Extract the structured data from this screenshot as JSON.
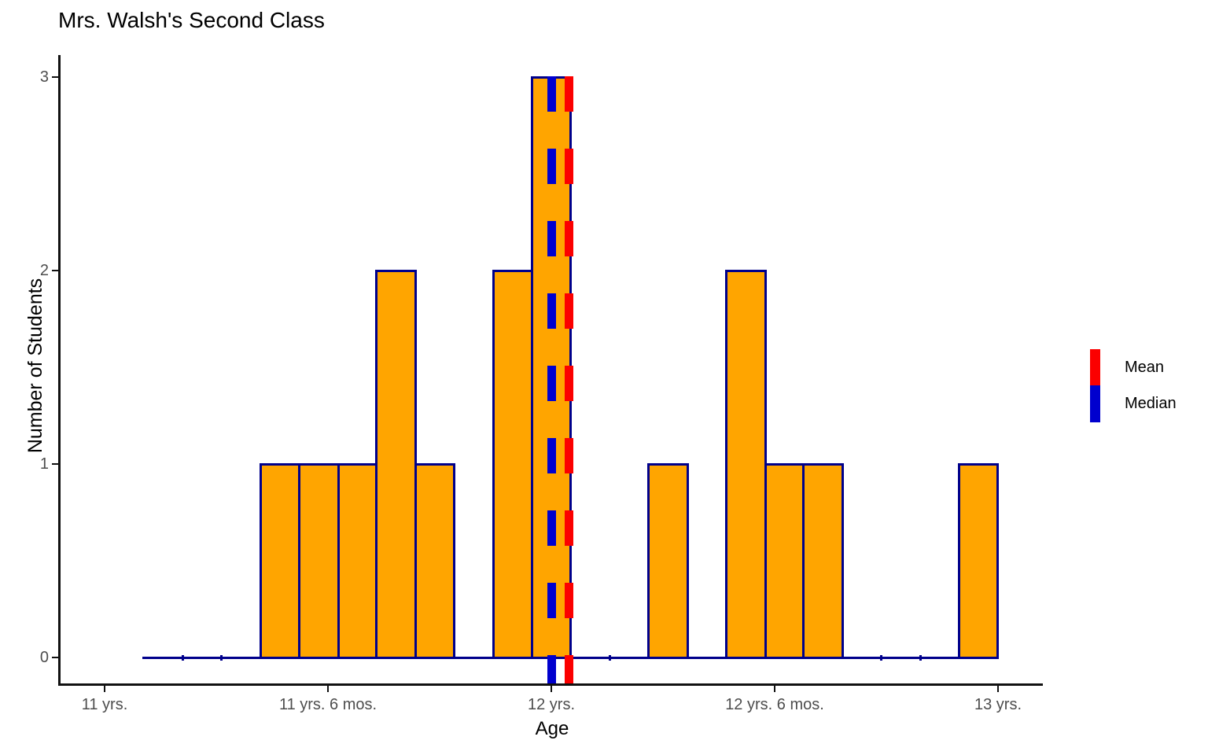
{
  "chart_data": {
    "type": "bar",
    "subtype": "histogram",
    "title": "Mrs. Walsh's Second Class",
    "xlabel": "Age",
    "ylabel": "Number of Students",
    "x_ticks": [
      {
        "value": 11.0,
        "label": "11 yrs."
      },
      {
        "value": 11.5,
        "label": "11 yrs. 6 mos."
      },
      {
        "value": 12.0,
        "label": "12 yrs."
      },
      {
        "value": 12.5,
        "label": "12 yrs. 6 mos."
      },
      {
        "value": 13.0,
        "label": "13 yrs."
      }
    ],
    "y_ticks": [
      {
        "value": 0,
        "label": "0"
      },
      {
        "value": 1,
        "label": "1"
      },
      {
        "value": 2,
        "label": "2"
      },
      {
        "value": 3,
        "label": "3"
      }
    ],
    "xlim": [
      10.9,
      13.1
    ],
    "ylim": [
      0,
      3
    ],
    "grid": false,
    "total_students": 17,
    "bins_x_unit": "age in years",
    "bins": [
      {
        "x0": 11.088,
        "x1": 11.175,
        "count": 0
      },
      {
        "x0": 11.175,
        "x1": 11.262,
        "count": 0
      },
      {
        "x0": 11.262,
        "x1": 11.349,
        "count": 0
      },
      {
        "x0": 11.349,
        "x1": 11.436,
        "count": 1
      },
      {
        "x0": 11.436,
        "x1": 11.523,
        "count": 1
      },
      {
        "x0": 11.523,
        "x1": 11.609,
        "count": 1
      },
      {
        "x0": 11.609,
        "x1": 11.696,
        "count": 2
      },
      {
        "x0": 11.696,
        "x1": 11.783,
        "count": 1
      },
      {
        "x0": 11.783,
        "x1": 11.87,
        "count": 0
      },
      {
        "x0": 11.87,
        "x1": 11.957,
        "count": 2
      },
      {
        "x0": 11.957,
        "x1": 12.044,
        "count": 3
      },
      {
        "x0": 12.044,
        "x1": 12.131,
        "count": 0
      },
      {
        "x0": 12.131,
        "x1": 12.218,
        "count": 0
      },
      {
        "x0": 12.218,
        "x1": 12.305,
        "count": 1
      },
      {
        "x0": 12.305,
        "x1": 12.392,
        "count": 0
      },
      {
        "x0": 12.392,
        "x1": 12.479,
        "count": 2
      },
      {
        "x0": 12.479,
        "x1": 12.565,
        "count": 1
      },
      {
        "x0": 12.565,
        "x1": 12.652,
        "count": 1
      },
      {
        "x0": 12.652,
        "x1": 12.739,
        "count": 0
      },
      {
        "x0": 12.739,
        "x1": 12.826,
        "count": 0
      },
      {
        "x0": 12.826,
        "x1": 12.913,
        "count": 0
      },
      {
        "x0": 12.913,
        "x1": 13.0,
        "count": 1
      }
    ],
    "reference_lines": [
      {
        "name": "mean",
        "value": 12.04,
        "color": "#FB0000",
        "style": "dashed"
      },
      {
        "name": "median",
        "value": 12.0,
        "color": "#0000CE",
        "style": "dashed"
      }
    ],
    "legend": [
      {
        "label": "Mean",
        "color": "#FB0000"
      },
      {
        "label": "Median",
        "color": "#0000CE"
      }
    ],
    "legend_position": "right",
    "colors": {
      "bar_fill": "#FFA500",
      "bar_stroke": "#00008B",
      "mean_line": "#FB0000",
      "median_line": "#0000CE",
      "tick_label": "#4D4D4D",
      "axis_line": "#111111"
    }
  }
}
